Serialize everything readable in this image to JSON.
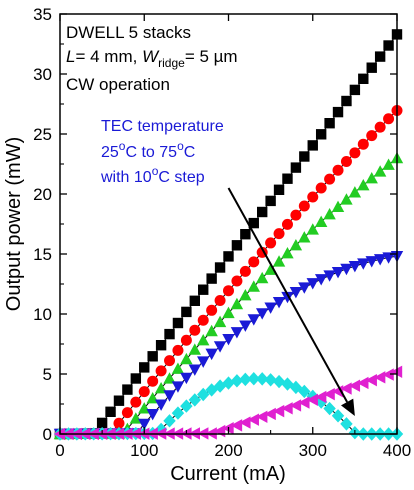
{
  "chart_data": {
    "type": "line",
    "xlabel": "Current (mA)",
    "ylabel": "Output power (mW)",
    "xlim": [
      0,
      400
    ],
    "ylim": [
      0,
      35
    ],
    "xticks": [
      0,
      100,
      200,
      300,
      400
    ],
    "yticks": [
      0,
      5,
      10,
      15,
      20,
      25,
      30,
      35
    ],
    "annotations": {
      "line1": "DWELL 5 stacks",
      "line2_L": "L",
      "line2_mid": "= 4 mm, ",
      "line2_W": "W",
      "line2_sub": "ridge",
      "line2_end": "= 5 µm",
      "line3": "CW operation",
      "tec1": "TEC temperature",
      "tec2a": "25",
      "tec2b": "o",
      "tec2c": "C to 75",
      "tec2d": "o",
      "tec2e": "C",
      "tec3a": "with 10",
      "tec3b": "o",
      "tec3c": "C step"
    },
    "arrow": {
      "from": [
        200,
        20.5
      ],
      "to": [
        350,
        1.5
      ]
    },
    "series": [
      {
        "marker": "square",
        "color": "#000000",
        "threshold": 40,
        "slope": 0.0925,
        "rolloff": 0
      },
      {
        "marker": "circle",
        "color": "#ff0000",
        "threshold": 60,
        "slope": 0.0895,
        "rolloff": 3e-05
      },
      {
        "marker": "triangle-up",
        "color": "#22cc22",
        "threshold": 75,
        "slope": 0.087,
        "rolloff": 5e-05
      },
      {
        "marker": "triangle-down",
        "color": "#1a1ad6",
        "threshold": 90,
        "slope": 0.085,
        "rolloff": 0.00012
      },
      {
        "marker": "diamond",
        "color": "#1ee0e0",
        "threshold": 115,
        "slope": 0.078,
        "rolloff": 0.00033
      },
      {
        "marker": "triangle-left",
        "color": "#e020d0",
        "threshold": 180,
        "slope": 0.024,
        "rolloff": 2e-06
      }
    ]
  }
}
